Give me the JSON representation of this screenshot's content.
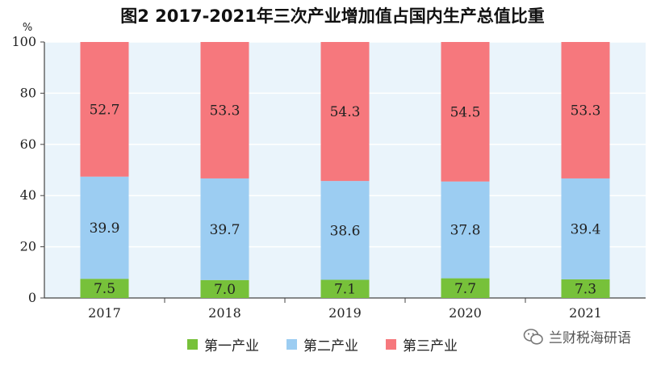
{
  "title": "图2  2017-2021年三次产业增加值占国内生产总值比重",
  "watermark": {
    "text": "兰财税海研语",
    "icon": "wechat-icon"
  },
  "colors": {
    "background": "#eaf4fb",
    "primary": "#77c13a",
    "secondary": "#9ccdf2",
    "tertiary": "#f6787d"
  },
  "chart_data": {
    "type": "bar",
    "stacked": true,
    "title": "图2  2017-2021年三次产业增加值占国内生产总值比重",
    "ylabel": "%",
    "ylim": [
      0,
      100
    ],
    "yticks": [
      "0",
      "20",
      "40",
      "60",
      "80",
      "100"
    ],
    "grid": true,
    "legend_position": "bottom",
    "categories": [
      "2017",
      "2018",
      "2019",
      "2020",
      "2021"
    ],
    "series": [
      {
        "name": "第一产业",
        "color": "#77c13a",
        "values": [
          7.5,
          7.0,
          7.1,
          7.7,
          7.3
        ],
        "labels": [
          "7.5",
          "7.0",
          "7.1",
          "7.7",
          "7.3"
        ]
      },
      {
        "name": "第二产业",
        "color": "#9ccdf2",
        "values": [
          39.9,
          39.7,
          38.6,
          37.8,
          39.4
        ],
        "labels": [
          "39.9",
          "39.7",
          "38.6",
          "37.8",
          "39.4"
        ]
      },
      {
        "name": "第三产业",
        "color": "#f6787d",
        "values": [
          52.7,
          53.3,
          54.3,
          54.5,
          53.3
        ],
        "labels": [
          "52.7",
          "53.3",
          "54.3",
          "54.5",
          "53.3"
        ]
      }
    ]
  }
}
